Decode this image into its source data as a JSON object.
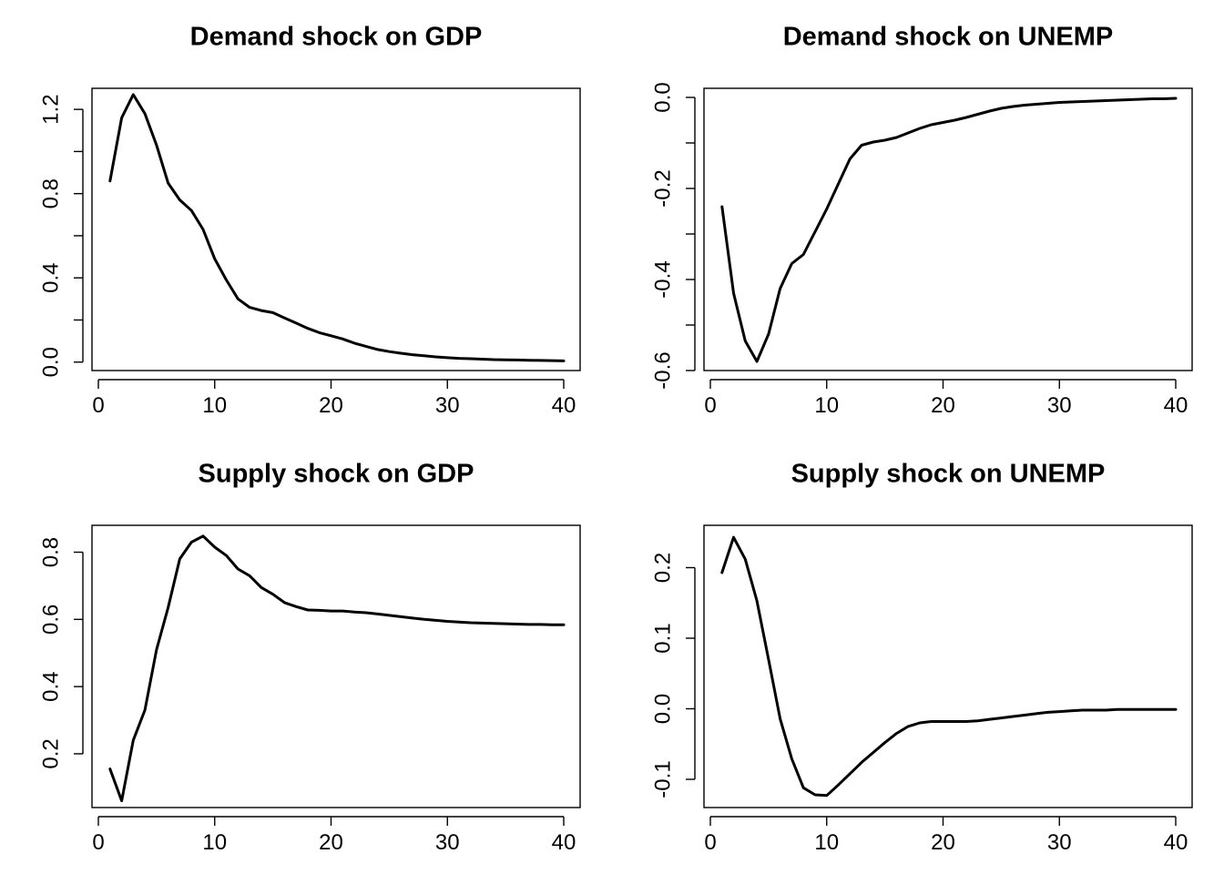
{
  "chart_data": [
    {
      "type": "line",
      "title": "Demand shock on GDP",
      "xlabel": "",
      "ylabel": "",
      "xlim": [
        0,
        40
      ],
      "ylim": [
        -0.04,
        1.3
      ],
      "x_ticks": [
        0,
        10,
        20,
        30,
        40
      ],
      "y_ticks": [
        0.0,
        0.2,
        0.4,
        0.6,
        0.8,
        1.0,
        1.2
      ],
      "y_tick_labels": [
        "0.0",
        "",
        "0.4",
        "",
        "0.8",
        "",
        "1.2"
      ],
      "grid": false,
      "x": [
        1,
        2,
        3,
        4,
        5,
        6,
        7,
        8,
        9,
        10,
        11,
        12,
        13,
        14,
        15,
        16,
        17,
        18,
        19,
        20,
        21,
        22,
        23,
        24,
        25,
        26,
        27,
        28,
        29,
        30,
        31,
        32,
        33,
        34,
        35,
        36,
        37,
        38,
        39,
        40
      ],
      "series": [
        {
          "values": [
            0.86,
            1.16,
            1.27,
            1.18,
            1.03,
            0.85,
            0.77,
            0.72,
            0.63,
            0.49,
            0.39,
            0.3,
            0.26,
            0.245,
            0.235,
            0.21,
            0.185,
            0.16,
            0.14,
            0.125,
            0.11,
            0.09,
            0.075,
            0.06,
            0.05,
            0.042,
            0.035,
            0.03,
            0.025,
            0.021,
            0.018,
            0.016,
            0.014,
            0.012,
            0.011,
            0.01,
            0.009,
            0.008,
            0.007,
            0.006
          ]
        }
      ]
    },
    {
      "type": "line",
      "title": "Demand shock on UNEMP",
      "xlabel": "",
      "ylabel": "",
      "xlim": [
        0,
        40
      ],
      "ylim": [
        -0.6,
        0.02
      ],
      "x_ticks": [
        0,
        10,
        20,
        30,
        40
      ],
      "y_ticks": [
        0.0,
        -0.1,
        -0.2,
        -0.3,
        -0.4,
        -0.5,
        -0.6
      ],
      "y_tick_labels": [
        "0.0",
        "",
        "-0.2",
        "",
        "-0.4",
        "",
        "-0.6"
      ],
      "grid": false,
      "x": [
        1,
        2,
        3,
        4,
        5,
        6,
        7,
        8,
        9,
        10,
        11,
        12,
        13,
        14,
        15,
        16,
        17,
        18,
        19,
        20,
        21,
        22,
        23,
        24,
        25,
        26,
        27,
        28,
        29,
        30,
        31,
        32,
        33,
        34,
        35,
        36,
        37,
        38,
        39,
        40
      ],
      "series": [
        {
          "values": [
            -0.24,
            -0.43,
            -0.535,
            -0.58,
            -0.52,
            -0.42,
            -0.365,
            -0.345,
            -0.295,
            -0.245,
            -0.19,
            -0.135,
            -0.105,
            -0.098,
            -0.094,
            -0.088,
            -0.078,
            -0.068,
            -0.06,
            -0.055,
            -0.05,
            -0.044,
            -0.037,
            -0.03,
            -0.024,
            -0.02,
            -0.017,
            -0.015,
            -0.013,
            -0.011,
            -0.01,
            -0.009,
            -0.008,
            -0.007,
            -0.006,
            -0.005,
            -0.004,
            -0.003,
            -0.003,
            -0.002
          ]
        }
      ]
    },
    {
      "type": "line",
      "title": "Supply shock on GDP",
      "xlabel": "",
      "ylabel": "",
      "xlim": [
        0,
        40
      ],
      "ylim": [
        0.04,
        0.88
      ],
      "x_ticks": [
        0,
        10,
        20,
        30,
        40
      ],
      "y_ticks": [
        0.2,
        0.4,
        0.6,
        0.8
      ],
      "y_tick_labels": [
        "0.2",
        "0.4",
        "0.6",
        "0.8"
      ],
      "grid": false,
      "x": [
        1,
        2,
        3,
        4,
        5,
        6,
        7,
        8,
        9,
        10,
        11,
        12,
        13,
        14,
        15,
        16,
        17,
        18,
        19,
        20,
        21,
        22,
        23,
        24,
        25,
        26,
        27,
        28,
        29,
        30,
        31,
        32,
        33,
        34,
        35,
        36,
        37,
        38,
        39,
        40
      ],
      "series": [
        {
          "values": [
            0.155,
            0.06,
            0.24,
            0.33,
            0.51,
            0.635,
            0.78,
            0.83,
            0.848,
            0.815,
            0.79,
            0.75,
            0.73,
            0.695,
            0.675,
            0.65,
            0.638,
            0.628,
            0.627,
            0.625,
            0.625,
            0.622,
            0.62,
            0.616,
            0.612,
            0.608,
            0.604,
            0.6,
            0.597,
            0.594,
            0.592,
            0.59,
            0.589,
            0.588,
            0.587,
            0.586,
            0.585,
            0.585,
            0.584,
            0.584
          ]
        }
      ]
    },
    {
      "type": "line",
      "title": "Supply shock on UNEMP",
      "xlabel": "",
      "ylabel": "",
      "xlim": [
        0,
        40
      ],
      "ylim": [
        -0.14,
        0.26
      ],
      "x_ticks": [
        0,
        10,
        20,
        30,
        40
      ],
      "y_ticks": [
        -0.1,
        0.0,
        0.1,
        0.2
      ],
      "y_tick_labels": [
        "-0.1",
        "0.0",
        "0.1",
        "0.2"
      ],
      "grid": false,
      "x": [
        1,
        2,
        3,
        4,
        5,
        6,
        7,
        8,
        9,
        10,
        11,
        12,
        13,
        14,
        15,
        16,
        17,
        18,
        19,
        20,
        21,
        22,
        23,
        24,
        25,
        26,
        27,
        28,
        29,
        30,
        31,
        32,
        33,
        34,
        35,
        36,
        37,
        38,
        39,
        40
      ],
      "series": [
        {
          "values": [
            0.193,
            0.243,
            0.212,
            0.153,
            0.07,
            -0.014,
            -0.071,
            -0.112,
            -0.122,
            -0.123,
            -0.108,
            -0.092,
            -0.076,
            -0.062,
            -0.048,
            -0.035,
            -0.025,
            -0.02,
            -0.018,
            -0.018,
            -0.018,
            -0.018,
            -0.017,
            -0.015,
            -0.013,
            -0.011,
            -0.009,
            -0.007,
            -0.005,
            -0.004,
            -0.003,
            -0.002,
            -0.002,
            -0.002,
            -0.001,
            -0.001,
            -0.001,
            -0.001,
            -0.001,
            -0.001
          ]
        }
      ]
    }
  ]
}
